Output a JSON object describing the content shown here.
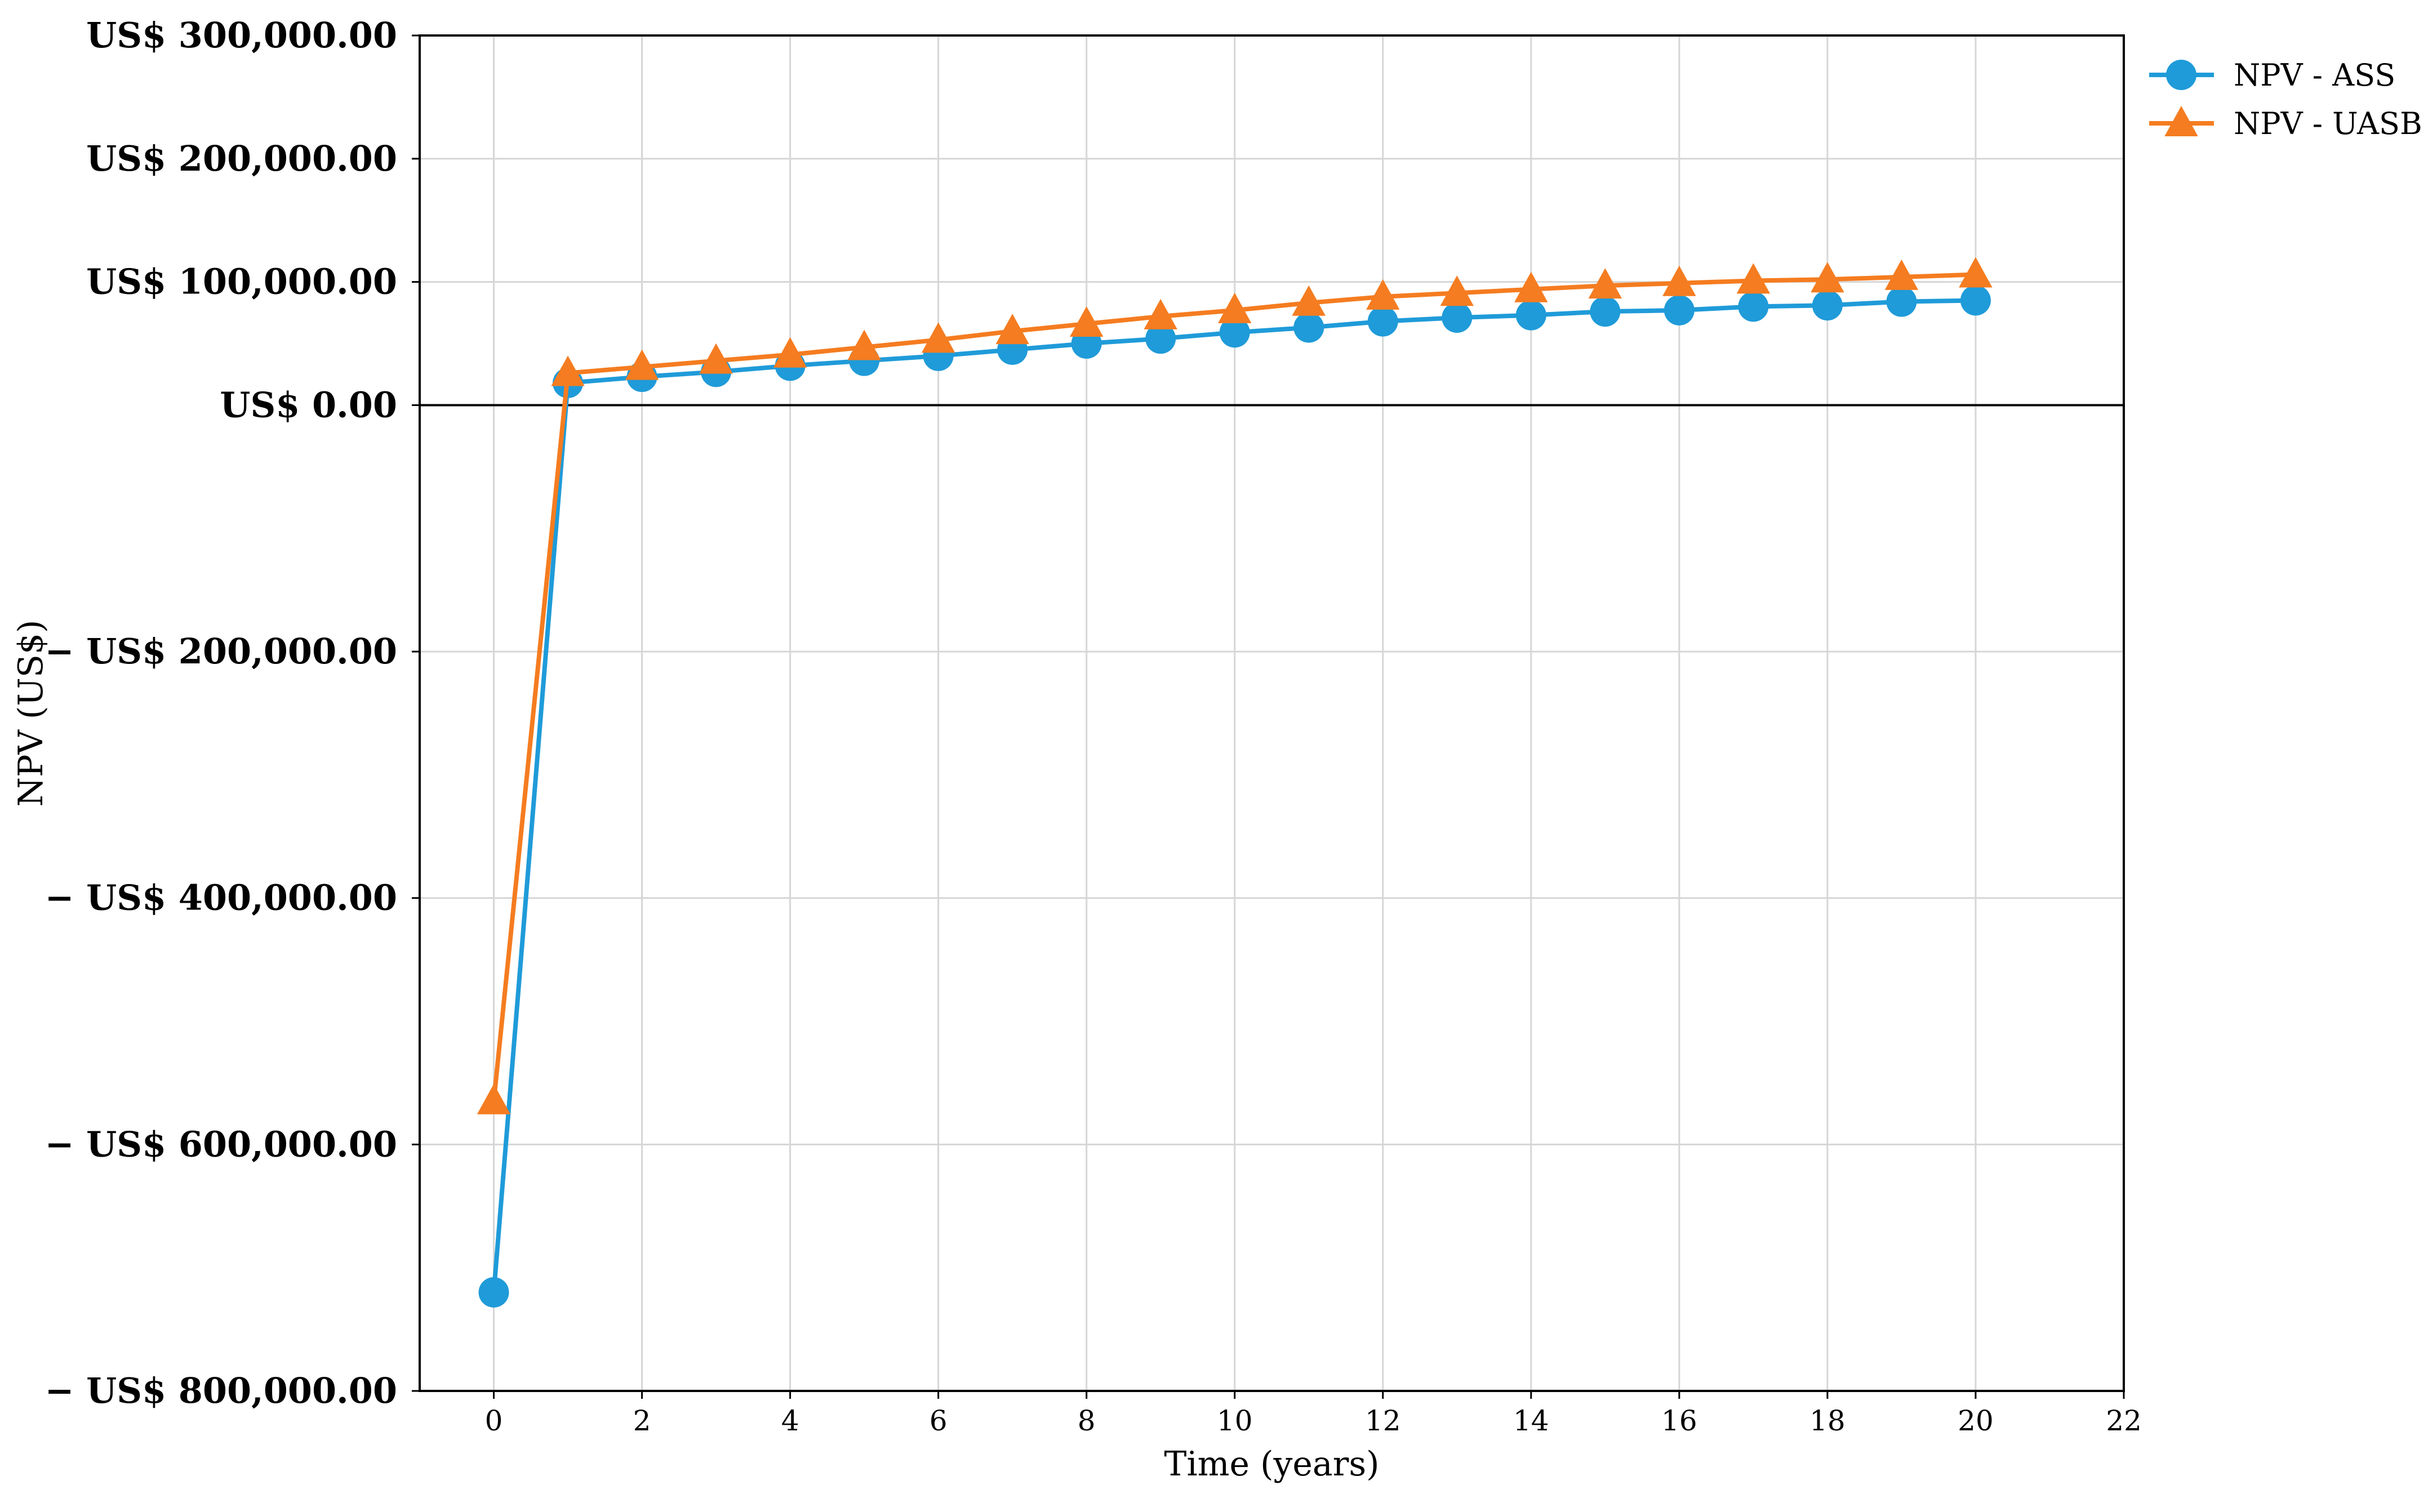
{
  "chart_data": {
    "type": "line",
    "xlabel": "Time (years)",
    "ylabel": "NPV (US$)",
    "xlim": [
      -1,
      22
    ],
    "ylim": [
      -800000,
      300000
    ],
    "x_ticks": [
      0,
      2,
      4,
      6,
      8,
      10,
      12,
      14,
      16,
      18,
      20,
      22
    ],
    "y_ticks": [
      300000,
      200000,
      100000,
      0,
      -200000,
      -400000,
      -600000,
      -800000
    ],
    "y_tick_labels": [
      "US$ 300,000.00",
      "US$ 200,000.00",
      "US$ 100,000.00",
      "US$ 0.00",
      "− US$ 200,000.00",
      "− US$ 400,000.00",
      "− US$ 600,000.00",
      "− US$ 800,000.00"
    ],
    "grid": true,
    "zero_line": true,
    "legend_position": "top-right",
    "x": [
      0,
      1,
      2,
      3,
      4,
      5,
      6,
      7,
      8,
      9,
      10,
      11,
      12,
      13,
      14,
      15,
      16,
      17,
      18,
      19,
      20
    ],
    "series": [
      {
        "name": "NPV - ASS",
        "marker": "circle",
        "color": "#1f9bd9",
        "values": [
          -720000,
          18000,
          23000,
          27000,
          32000,
          36000,
          40000,
          45000,
          50000,
          54000,
          59000,
          63000,
          68000,
          71000,
          73000,
          76000,
          77000,
          80000,
          81000,
          84000,
          85000
        ]
      },
      {
        "name": "NPV - UASB",
        "marker": "triangle",
        "color": "#f57c20",
        "values": [
          -565000,
          26000,
          31000,
          36000,
          41000,
          47000,
          53000,
          60000,
          66000,
          72000,
          77000,
          83000,
          88000,
          91000,
          94000,
          97000,
          99000,
          101000,
          102000,
          104000,
          106000
        ]
      }
    ]
  }
}
